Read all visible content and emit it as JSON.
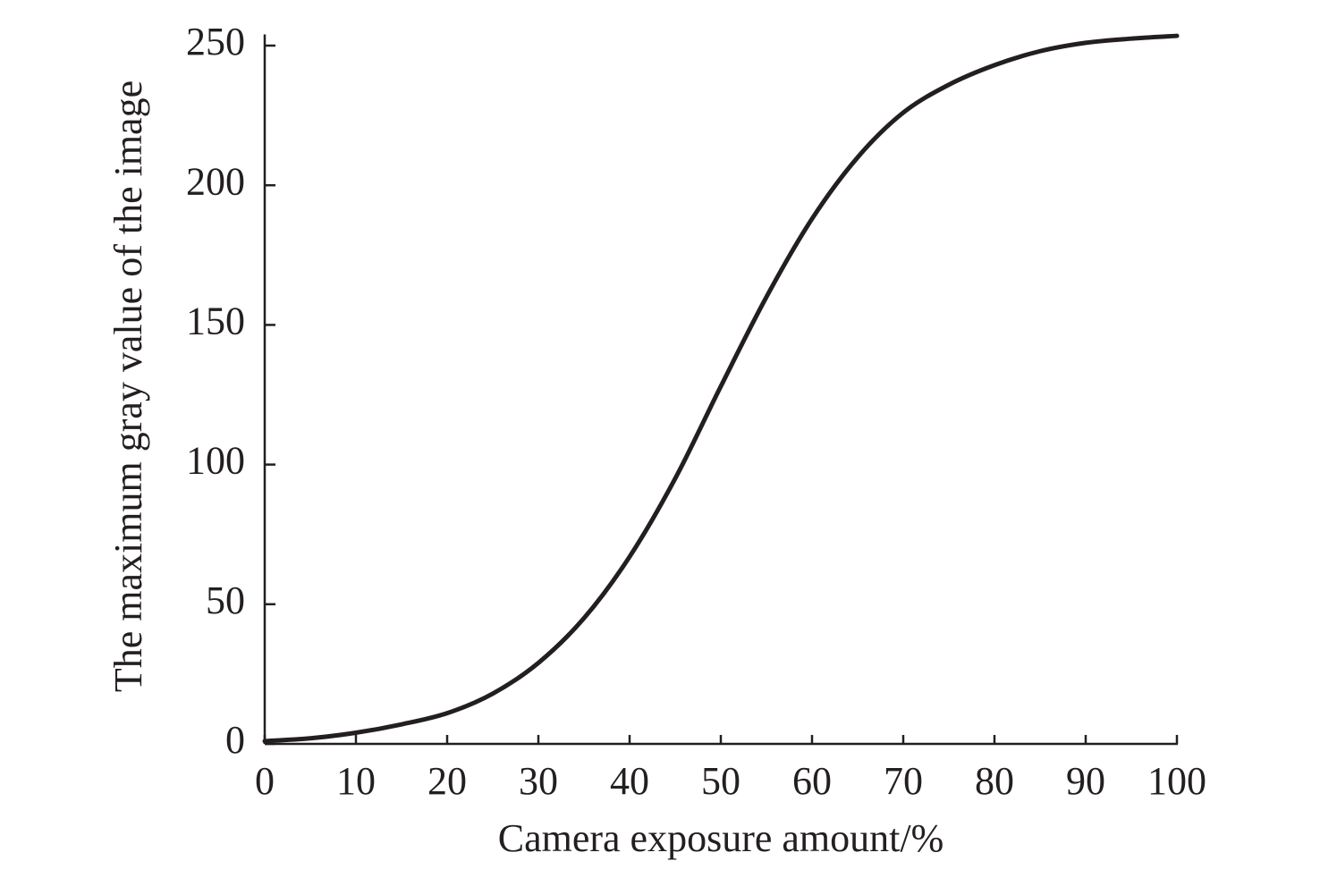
{
  "chart_data": {
    "type": "line",
    "x_label": "Camera exposure amount/%",
    "y_label": "The maximum gray value of the image",
    "x": [
      0,
      5,
      10,
      15,
      20,
      25,
      30,
      35,
      40,
      45,
      50,
      55,
      60,
      65,
      70,
      75,
      80,
      85,
      90,
      95,
      100
    ],
    "values": [
      1,
      2,
      4,
      7,
      11,
      18,
      29,
      45,
      67,
      95,
      128,
      160,
      188,
      210,
      226,
      236,
      243,
      248,
      251,
      252.5,
      253.5
    ],
    "color": "#231f20",
    "xlim": [
      0,
      100
    ],
    "xticks": [
      0,
      10,
      20,
      30,
      40,
      50,
      60,
      70,
      80,
      90,
      100
    ],
    "ylim": [
      0,
      254
    ],
    "yticks": [
      0,
      50,
      100,
      150,
      200,
      250
    ],
    "grid": false
  }
}
